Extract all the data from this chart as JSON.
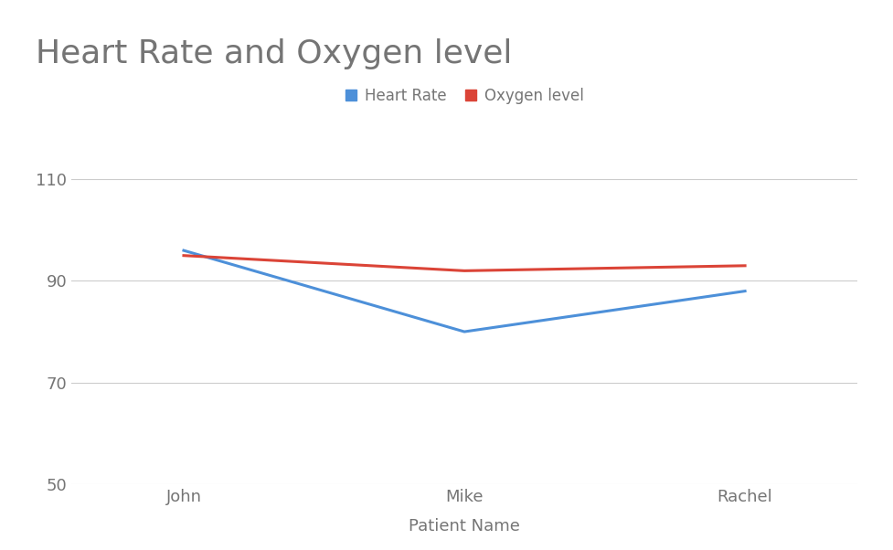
{
  "title": "Heart Rate and Oxygen level",
  "title_fontsize": 26,
  "title_color": "#757575",
  "xlabel": "Patient Name",
  "xlabel_fontsize": 13,
  "xlabel_color": "#757575",
  "categories": [
    "John",
    "Mike",
    "Rachel"
  ],
  "series": [
    {
      "label": "Heart Rate",
      "values": [
        96,
        80,
        88
      ],
      "color": "#4d90d9",
      "linewidth": 2.2
    },
    {
      "label": "Oxygen level",
      "values": [
        95,
        92,
        93
      ],
      "color": "#db4437",
      "linewidth": 2.2
    }
  ],
  "ylim": [
    50,
    115
  ],
  "yticks": [
    50,
    70,
    90,
    110
  ],
  "grid_color": "#cccccc",
  "background_color": "#ffffff",
  "legend_fontsize": 12,
  "tick_fontsize": 13,
  "tick_color": "#757575"
}
